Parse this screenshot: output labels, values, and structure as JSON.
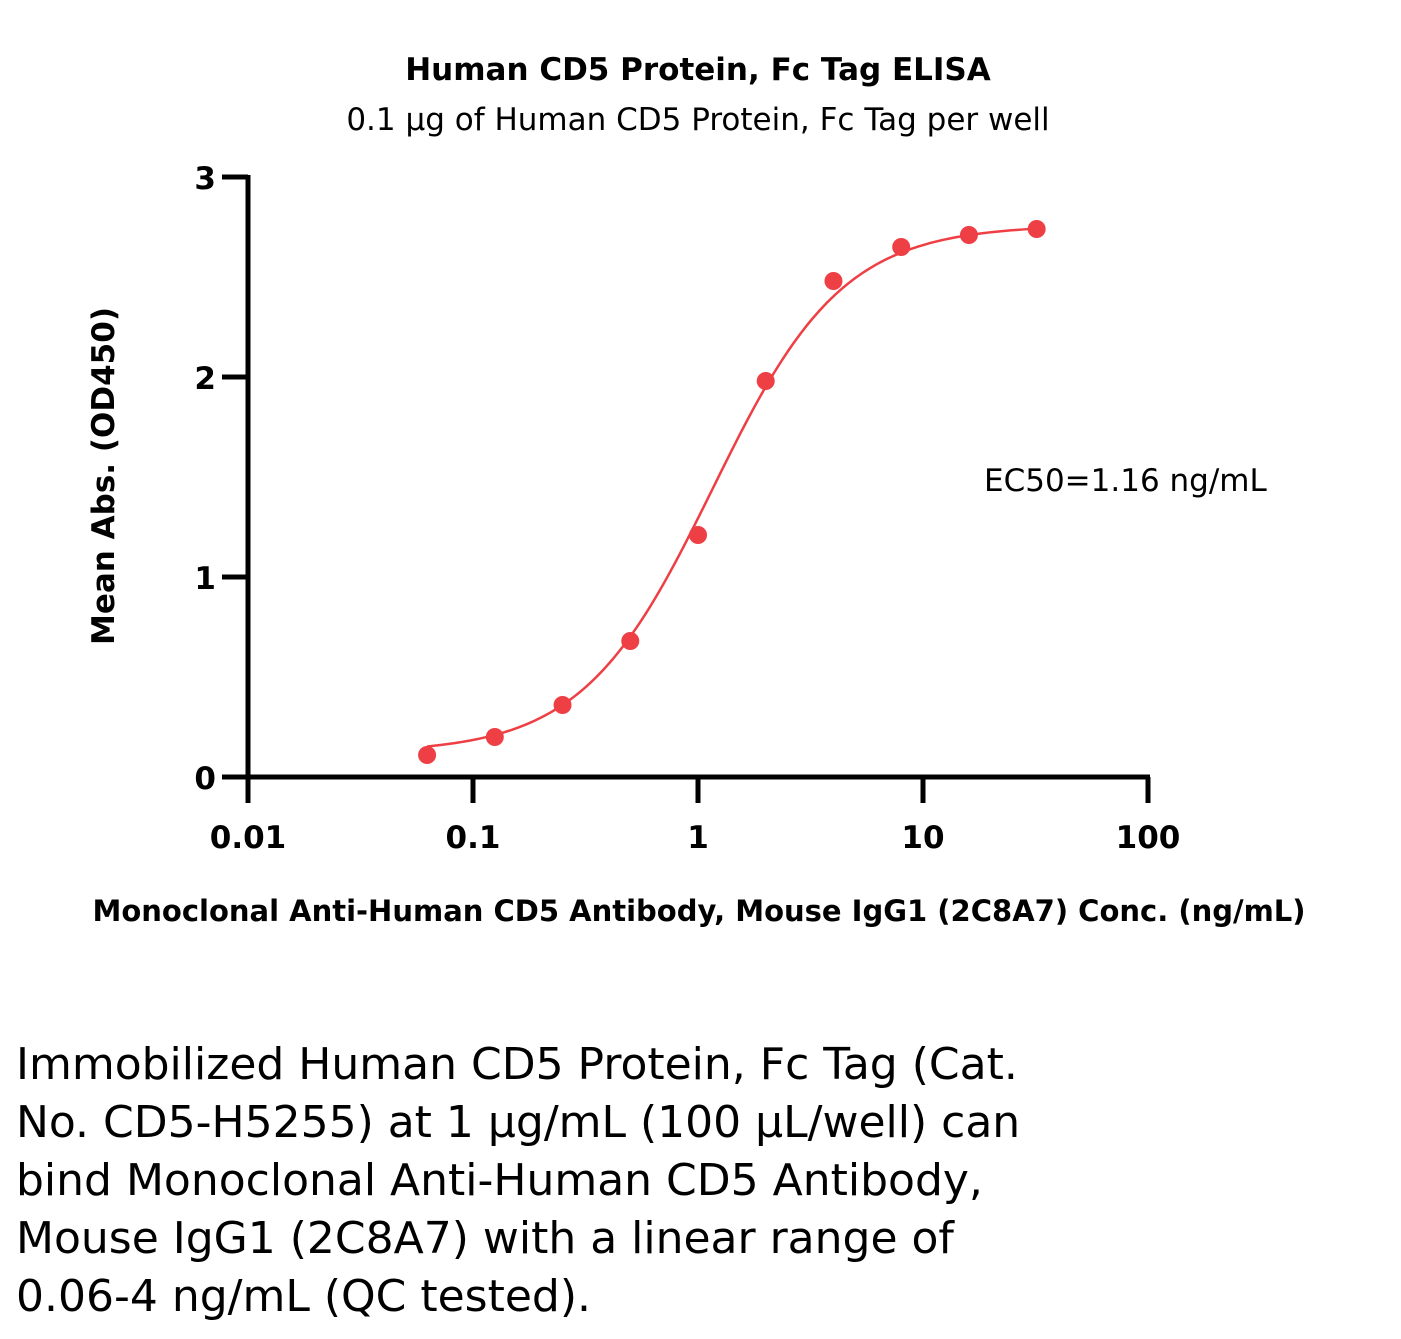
{
  "chart_data": {
    "type": "scatter",
    "title": "Human CD5 Protein, Fc Tag ELISA",
    "subtitle": "0.1 µg of Human CD5 Protein, Fc Tag per well",
    "xlabel": "Monoclonal Anti-Human CD5 Antibody, Mouse IgG1 (2C8A7) Conc. (ng/mL)",
    "ylabel": "Mean Abs. (OD450)",
    "xscale": "log",
    "xlim": [
      0.01,
      100
    ],
    "ylim": [
      0,
      3
    ],
    "xticks": [
      "0.01",
      "0.1",
      "1",
      "10",
      "100"
    ],
    "yticks": [
      "0",
      "1",
      "2",
      "3"
    ],
    "grid": false,
    "annotation": "EC50=1.16 ng/mL",
    "series": [
      {
        "name": "Human CD5 Protein, Fc Tag",
        "color": "#ee3f45",
        "x": [
          0.0625,
          0.125,
          0.25,
          0.5,
          1,
          2,
          4,
          8,
          16,
          32
        ],
        "y": [
          0.11,
          0.2,
          0.36,
          0.68,
          1.21,
          1.98,
          2.48,
          2.65,
          2.71,
          2.74
        ]
      }
    ],
    "fit": {
      "model": "4PL",
      "bottom": 0.12,
      "top": 2.76,
      "ec50": 1.16,
      "hill": 1.5
    }
  },
  "caption": {
    "lines": [
      "Immobilized Human CD5 Protein, Fc Tag (Cat.",
      "No. CD5-H5255) at 1 µg/mL (100 µL/well) can",
      "bind Monoclonal Anti-Human CD5 Antibody,",
      "Mouse IgG1 (2C8A7) with a linear range of",
      "0.06-4 ng/mL (QC tested)."
    ]
  }
}
